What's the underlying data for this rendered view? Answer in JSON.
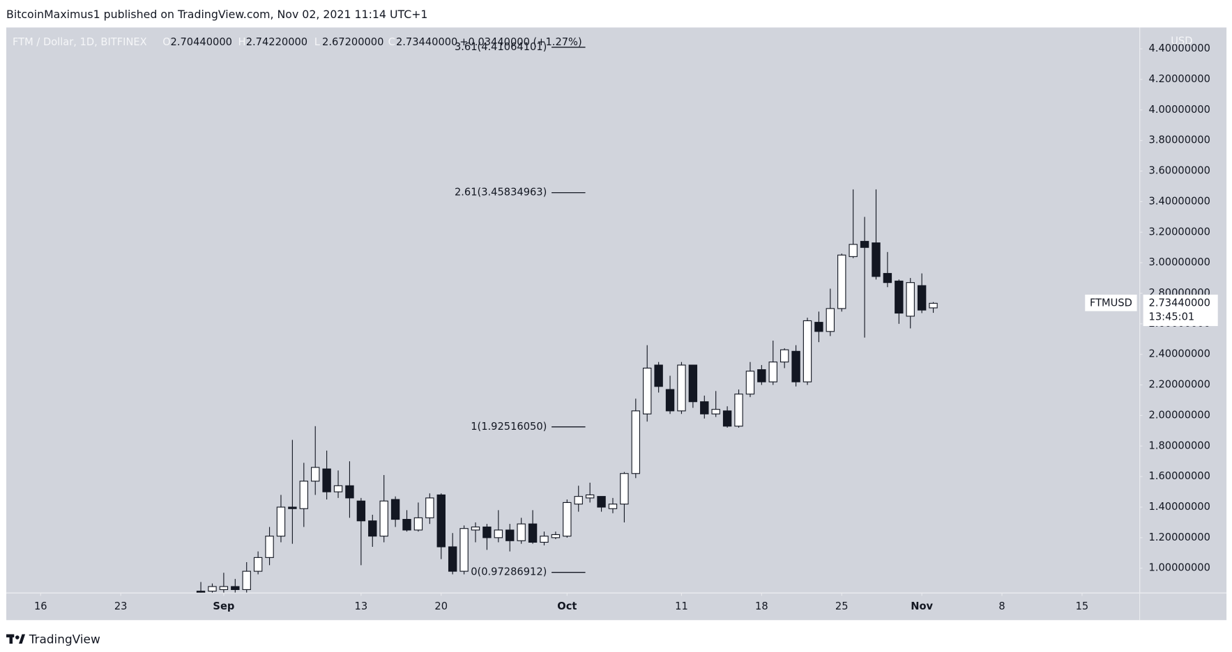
{
  "header": {
    "publisher": "BitcoinMaximus1 published on TradingView.com, Nov 02, 2021 11:14 UTC+1"
  },
  "legend": {
    "symbol": "FTM / Dollar, 1D, BITFINEX",
    "fields": [
      {
        "key": "O",
        "value": "2.70440000"
      },
      {
        "key": "H",
        "value": "2.74220000"
      },
      {
        "key": "L",
        "value": "2.67200000"
      },
      {
        "key": "C",
        "value": "2.73440000"
      }
    ],
    "change": "+0.03440000 (+1.27%)"
  },
  "footer": {
    "brand": "TradingView"
  },
  "chart_data": {
    "type": "candlestick",
    "y_axis_unit": "USD",
    "x": [
      "08-30",
      "08-31",
      "09-01",
      "09-02",
      "09-03",
      "09-04",
      "09-05",
      "09-06",
      "09-07",
      "09-08",
      "09-09",
      "09-10",
      "09-11",
      "09-12",
      "09-13",
      "09-14",
      "09-15",
      "09-16",
      "09-17",
      "09-18",
      "09-19",
      "09-20",
      "09-21",
      "09-22",
      "09-23",
      "09-24",
      "09-25",
      "09-26",
      "09-27",
      "09-28",
      "09-29",
      "09-30",
      "10-01",
      "10-02",
      "10-03",
      "10-04",
      "10-05",
      "10-06",
      "10-07",
      "10-08",
      "10-09",
      "10-10",
      "10-11",
      "10-12",
      "10-13",
      "10-14",
      "10-15",
      "10-16",
      "10-17",
      "10-18",
      "10-19",
      "10-20",
      "10-21",
      "10-22",
      "10-23",
      "10-24",
      "10-25",
      "10-26",
      "10-27",
      "10-28",
      "10-29",
      "10-30",
      "10-31",
      "11-01",
      "11-02"
    ],
    "series": [
      {
        "name": "FTMUSD",
        "up_color": "#ffffff",
        "down_color": "#131722",
        "open": [
          0.85,
          0.85,
          0.86,
          0.88,
          0.86,
          0.98,
          1.07,
          1.21,
          1.4,
          1.39,
          1.57,
          1.65,
          1.5,
          1.54,
          1.44,
          1.31,
          1.21,
          1.45,
          1.32,
          1.25,
          1.33,
          1.48,
          1.14,
          0.98,
          1.25,
          1.27,
          1.2,
          1.25,
          1.18,
          1.29,
          1.17,
          1.2,
          1.21,
          1.42,
          1.46,
          1.47,
          1.39,
          1.42,
          1.62,
          2.01,
          2.33,
          2.17,
          2.03,
          2.33,
          2.09,
          2.01,
          2.03,
          1.93,
          2.14,
          2.3,
          2.22,
          2.35,
          2.42,
          2.22,
          2.61,
          2.55,
          2.7,
          3.04,
          3.14,
          3.13,
          2.93,
          2.88,
          2.65,
          2.85,
          2.7044
        ],
        "high": [
          0.91,
          0.9,
          0.97,
          0.93,
          1.04,
          1.11,
          1.27,
          1.48,
          1.84,
          1.69,
          1.93,
          1.77,
          1.64,
          1.7,
          1.46,
          1.35,
          1.61,
          1.47,
          1.38,
          1.43,
          1.49,
          1.49,
          1.23,
          1.28,
          1.3,
          1.29,
          1.38,
          1.29,
          1.33,
          1.38,
          1.24,
          1.24,
          1.45,
          1.54,
          1.56,
          1.47,
          1.46,
          1.63,
          2.11,
          2.46,
          2.35,
          2.26,
          2.35,
          2.33,
          2.13,
          2.16,
          2.06,
          2.17,
          2.35,
          2.33,
          2.49,
          2.44,
          2.46,
          2.64,
          2.68,
          2.83,
          3.06,
          3.48,
          3.3,
          3.48,
          3.07,
          2.89,
          2.9,
          2.93,
          2.7422
        ],
        "low": [
          0.8,
          0.82,
          0.83,
          0.84,
          0.84,
          0.96,
          1.02,
          1.17,
          1.16,
          1.27,
          1.48,
          1.45,
          1.46,
          1.33,
          1.02,
          1.14,
          1.17,
          1.27,
          1.24,
          1.24,
          1.29,
          1.06,
          0.96,
          0.96,
          1.17,
          1.12,
          1.17,
          1.11,
          1.16,
          1.16,
          1.15,
          1.19,
          1.2,
          1.37,
          1.43,
          1.37,
          1.36,
          1.3,
          1.59,
          1.96,
          2.15,
          2.01,
          2.01,
          2.05,
          1.98,
          1.99,
          1.92,
          1.92,
          2.12,
          2.2,
          2.2,
          2.31,
          2.19,
          2.2,
          2.48,
          2.52,
          2.68,
          3.03,
          2.51,
          2.89,
          2.84,
          2.6,
          2.57,
          2.67,
          2.672
        ],
        "close": [
          0.83,
          0.88,
          0.88,
          0.86,
          0.98,
          1.07,
          1.21,
          1.4,
          1.39,
          1.57,
          1.66,
          1.5,
          1.54,
          1.46,
          1.31,
          1.21,
          1.44,
          1.32,
          1.25,
          1.33,
          1.46,
          1.14,
          0.98,
          1.26,
          1.27,
          1.2,
          1.25,
          1.18,
          1.29,
          1.17,
          1.21,
          1.22,
          1.43,
          1.47,
          1.48,
          1.4,
          1.42,
          1.62,
          2.03,
          2.31,
          2.19,
          2.03,
          2.33,
          2.09,
          2.01,
          2.04,
          1.93,
          2.14,
          2.29,
          2.22,
          2.35,
          2.43,
          2.22,
          2.62,
          2.55,
          2.7,
          3.05,
          3.12,
          3.1,
          2.91,
          2.87,
          2.67,
          2.87,
          2.69,
          2.7344
        ]
      }
    ],
    "last_price": {
      "value": 2.7344,
      "label": "2.73440000",
      "countdown": "13:45:01"
    },
    "fib_levels": [
      {
        "label": "3.61(4.41064101)",
        "price": 4.41064101
      },
      {
        "label": "2.61(3.45834963)",
        "price": 3.45834963
      },
      {
        "label": "1(1.92516050)",
        "price": 1.9251605
      },
      {
        "label": "0(0.97286912)",
        "price": 0.97286912
      }
    ],
    "xlim": [
      "08-13",
      "11-20"
    ],
    "xticks": [
      {
        "value": "08-16",
        "label": "16"
      },
      {
        "value": "08-23",
        "label": "23"
      },
      {
        "value": "09-01",
        "label": "Sep"
      },
      {
        "value": "09-13",
        "label": "13"
      },
      {
        "value": "09-20",
        "label": "20"
      },
      {
        "value": "10-01",
        "label": "Oct"
      },
      {
        "value": "10-11",
        "label": "11"
      },
      {
        "value": "10-18",
        "label": "18"
      },
      {
        "value": "10-25",
        "label": "25"
      },
      {
        "value": "11-01",
        "label": "Nov"
      },
      {
        "value": "11-08",
        "label": "8"
      },
      {
        "value": "11-15",
        "label": "15"
      }
    ],
    "ylim": [
      0.84,
      4.54
    ],
    "yticks": [
      {
        "value": 1.0,
        "label": "1.00000000"
      },
      {
        "value": 1.2,
        "label": "1.20000000"
      },
      {
        "value": 1.4,
        "label": "1.40000000"
      },
      {
        "value": 1.6,
        "label": "1.60000000"
      },
      {
        "value": 1.8,
        "label": "1.80000000"
      },
      {
        "value": 2.0,
        "label": "2.00000000"
      },
      {
        "value": 2.2,
        "label": "2.20000000"
      },
      {
        "value": 2.4,
        "label": "2.40000000"
      },
      {
        "value": 2.6,
        "label": "2.60000000"
      },
      {
        "value": 2.8,
        "label": "2.80000000"
      },
      {
        "value": 3.0,
        "label": "3.00000000"
      },
      {
        "value": 3.2,
        "label": "3.20000000"
      },
      {
        "value": 3.4,
        "label": "3.40000000"
      },
      {
        "value": 3.6,
        "label": "3.60000000"
      },
      {
        "value": 3.8,
        "label": "3.80000000"
      },
      {
        "value": 4.0,
        "label": "4.00000000"
      },
      {
        "value": 4.2,
        "label": "4.20000000"
      },
      {
        "value": 4.4,
        "label": "4.40000000"
      }
    ],
    "grid": false
  }
}
